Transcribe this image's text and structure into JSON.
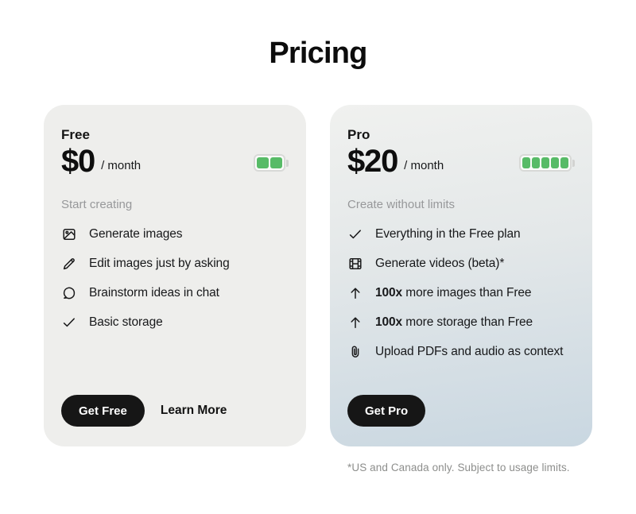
{
  "page": {
    "title": "Pricing",
    "footnote": "*US and Canada only. Subject to usage limits."
  },
  "colors": {
    "background": "#ffffff",
    "free_card": "#eeeeec",
    "pro_card_gradient_top": "#f0f1ef",
    "pro_card_gradient_bottom": "#c9d7e1",
    "battery_green": "#57bb67",
    "button_black": "#161616",
    "muted_text": "#97989a"
  },
  "plans": [
    {
      "name": "Free",
      "price": "$0",
      "period": "/ month",
      "battery_segments": 2,
      "tagline": "Start creating",
      "features": [
        {
          "icon": "image-icon",
          "text": "Generate images"
        },
        {
          "icon": "pencil-icon",
          "text": "Edit images just by asking"
        },
        {
          "icon": "chat-icon",
          "text": "Brainstorm ideas in chat"
        },
        {
          "icon": "check-icon",
          "text": "Basic storage"
        }
      ],
      "primary_button": "Get Free",
      "secondary_button": "Learn More"
    },
    {
      "name": "Pro",
      "price": "$20",
      "period": "/ month",
      "battery_segments": 5,
      "tagline": "Create without limits",
      "features": [
        {
          "icon": "check-icon",
          "text": "Everything in the Free plan"
        },
        {
          "icon": "film-icon",
          "text": "Generate videos (beta)*"
        },
        {
          "icon": "arrow-up-icon",
          "bold": "100x",
          "text": "more images than Free"
        },
        {
          "icon": "arrow-up-icon",
          "bold": "100x",
          "text": "more storage than Free"
        },
        {
          "icon": "paperclip-icon",
          "text": "Upload PDFs and audio as context"
        }
      ],
      "primary_button": "Get Pro"
    }
  ]
}
